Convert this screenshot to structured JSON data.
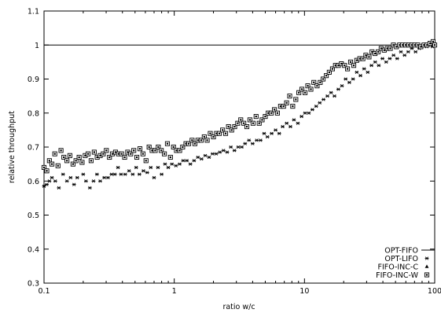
{
  "chart_data": {
    "type": "scatter",
    "title": "",
    "xlabel": "ratio w/c",
    "ylabel": "relative throughput",
    "xscale": "log",
    "xlim": [
      0.1,
      100
    ],
    "ylim": [
      0.3,
      1.1
    ],
    "xticks": [
      {
        "value": 0.1,
        "label": "0.1"
      },
      {
        "value": 1,
        "label": "1"
      },
      {
        "value": 10,
        "label": "10"
      },
      {
        "value": 100,
        "label": "100"
      }
    ],
    "yticks": [
      {
        "value": 0.3,
        "label": "0.3"
      },
      {
        "value": 0.4,
        "label": "0.4"
      },
      {
        "value": 0.5,
        "label": "0.5"
      },
      {
        "value": 0.6,
        "label": "0.6"
      },
      {
        "value": 0.7,
        "label": "0.7"
      },
      {
        "value": 0.8,
        "label": "0.8"
      },
      {
        "value": 0.9,
        "label": "0.9"
      },
      {
        "value": 1,
        "label": "1"
      },
      {
        "value": 1.1,
        "label": "1.1"
      }
    ],
    "grid": false,
    "legend_position": "bottom-right",
    "series": [
      {
        "name": "OPT-FIFO",
        "style": "line",
        "x": [
          0.1,
          100
        ],
        "y": [
          1.0,
          1.0
        ]
      },
      {
        "name": "OPT-LIFO",
        "style": "star",
        "x": [
          0.1,
          0.105,
          0.11,
          0.115,
          0.122,
          0.13,
          0.14,
          0.15,
          0.16,
          0.17,
          0.18,
          0.2,
          0.21,
          0.225,
          0.24,
          0.255,
          0.27,
          0.29,
          0.31,
          0.33,
          0.35,
          0.37,
          0.39,
          0.42,
          0.45,
          0.48,
          0.51,
          0.54,
          0.58,
          0.62,
          0.66,
          0.7,
          0.75,
          0.8,
          0.85,
          0.9,
          0.96,
          1.03,
          1.1,
          1.17,
          1.25,
          1.33,
          1.42,
          1.52,
          1.62,
          1.73,
          1.85,
          1.97,
          2.1,
          2.24,
          2.39,
          2.55,
          2.72,
          2.9,
          3.1,
          3.3,
          3.5,
          3.75,
          4.0,
          4.3,
          4.6,
          4.9,
          5.2,
          5.6,
          6.0,
          6.4,
          6.8,
          7.3,
          7.8,
          8.3,
          8.9,
          9.5,
          10.1,
          10.8,
          11.5,
          12.3,
          13.1,
          14.0,
          15.0,
          16.0,
          17.0,
          18.2,
          19.4,
          20.7,
          22.1,
          23.6,
          25.2,
          26.9,
          28.7,
          30.6,
          32.7,
          34.9,
          37.2,
          39.7,
          42.4,
          45.2,
          48.3,
          51.5,
          55.0,
          58.7,
          62.6,
          66.8,
          71.3,
          76.1,
          81.2,
          86.7,
          92.5,
          96.0,
          100.0
        ],
        "y": [
          0.585,
          0.59,
          0.6,
          0.61,
          0.6,
          0.58,
          0.62,
          0.6,
          0.61,
          0.59,
          0.61,
          0.62,
          0.6,
          0.58,
          0.6,
          0.62,
          0.6,
          0.61,
          0.61,
          0.62,
          0.62,
          0.64,
          0.62,
          0.62,
          0.63,
          0.62,
          0.64,
          0.62,
          0.63,
          0.625,
          0.64,
          0.61,
          0.64,
          0.62,
          0.65,
          0.64,
          0.65,
          0.645,
          0.65,
          0.66,
          0.66,
          0.65,
          0.66,
          0.67,
          0.665,
          0.675,
          0.67,
          0.68,
          0.68,
          0.685,
          0.69,
          0.685,
          0.7,
          0.69,
          0.7,
          0.7,
          0.71,
          0.72,
          0.71,
          0.72,
          0.72,
          0.74,
          0.73,
          0.74,
          0.75,
          0.74,
          0.76,
          0.77,
          0.76,
          0.78,
          0.77,
          0.79,
          0.8,
          0.8,
          0.81,
          0.82,
          0.83,
          0.84,
          0.85,
          0.86,
          0.85,
          0.87,
          0.88,
          0.9,
          0.89,
          0.9,
          0.92,
          0.91,
          0.93,
          0.92,
          0.94,
          0.95,
          0.94,
          0.96,
          0.95,
          0.96,
          0.97,
          0.96,
          0.98,
          0.97,
          0.98,
          0.99,
          0.98,
          0.99,
          1.0,
          0.995,
          1.0,
          0.995,
          1.0
        ]
      },
      {
        "name": "FIFO-INC-C",
        "style": "triangle",
        "x": [],
        "y": []
      },
      {
        "name": "FIFO-INC-W",
        "style": "boxed-square",
        "x": [
          0.1,
          0.105,
          0.11,
          0.115,
          0.121,
          0.128,
          0.135,
          0.142,
          0.15,
          0.158,
          0.167,
          0.176,
          0.186,
          0.196,
          0.207,
          0.218,
          0.23,
          0.243,
          0.256,
          0.27,
          0.285,
          0.301,
          0.318,
          0.335,
          0.354,
          0.373,
          0.394,
          0.416,
          0.439,
          0.463,
          0.489,
          0.516,
          0.545,
          0.575,
          0.607,
          0.641,
          0.676,
          0.714,
          0.754,
          0.795,
          0.84,
          0.886,
          0.935,
          0.987,
          1.04,
          1.1,
          1.16,
          1.23,
          1.29,
          1.37,
          1.44,
          1.52,
          1.61,
          1.7,
          1.79,
          1.89,
          2.0,
          2.11,
          2.22,
          2.35,
          2.48,
          2.61,
          2.76,
          2.91,
          3.07,
          3.24,
          3.42,
          3.61,
          3.81,
          4.03,
          4.25,
          4.49,
          4.73,
          5.0,
          5.27,
          5.57,
          5.88,
          6.2,
          6.55,
          6.91,
          7.29,
          7.7,
          8.12,
          8.58,
          9.05,
          9.55,
          10.1,
          10.6,
          11.2,
          11.8,
          12.5,
          13.2,
          13.9,
          14.7,
          15.5,
          16.4,
          17.3,
          18.2,
          19.2,
          20.3,
          21.4,
          22.6,
          23.9,
          25.2,
          26.6,
          28.1,
          29.6,
          31.3,
          33.0,
          34.8,
          36.8,
          38.8,
          41.0,
          43.2,
          45.6,
          48.2,
          50.8,
          53.7,
          56.6,
          59.8,
          63.1,
          66.6,
          70.3,
          74.2,
          78.3,
          82.7,
          87.3,
          92.1,
          97.2,
          100.0
        ],
        "y": [
          0.64,
          0.63,
          0.66,
          0.65,
          0.68,
          0.645,
          0.69,
          0.67,
          0.66,
          0.675,
          0.65,
          0.66,
          0.67,
          0.655,
          0.675,
          0.68,
          0.66,
          0.685,
          0.67,
          0.675,
          0.68,
          0.69,
          0.67,
          0.68,
          0.685,
          0.68,
          0.68,
          0.67,
          0.685,
          0.68,
          0.69,
          0.67,
          0.695,
          0.68,
          0.66,
          0.7,
          0.69,
          0.69,
          0.7,
          0.69,
          0.68,
          0.71,
          0.67,
          0.7,
          0.69,
          0.69,
          0.7,
          0.71,
          0.71,
          0.72,
          0.71,
          0.72,
          0.72,
          0.73,
          0.72,
          0.74,
          0.73,
          0.74,
          0.74,
          0.75,
          0.74,
          0.76,
          0.75,
          0.76,
          0.77,
          0.78,
          0.77,
          0.76,
          0.78,
          0.77,
          0.79,
          0.77,
          0.78,
          0.79,
          0.8,
          0.8,
          0.81,
          0.8,
          0.82,
          0.82,
          0.83,
          0.85,
          0.82,
          0.84,
          0.86,
          0.87,
          0.86,
          0.88,
          0.87,
          0.89,
          0.88,
          0.89,
          0.9,
          0.91,
          0.92,
          0.93,
          0.94,
          0.94,
          0.945,
          0.94,
          0.93,
          0.95,
          0.94,
          0.955,
          0.96,
          0.96,
          0.97,
          0.965,
          0.98,
          0.975,
          0.98,
          0.99,
          0.985,
          0.99,
          0.99,
          1.0,
          0.995,
          1.0,
          1.0,
          1.0,
          1.0,
          1.0,
          1.0,
          1.0,
          0.995,
          1.0,
          1.0,
          1.005,
          1.01,
          1.0
        ]
      }
    ]
  }
}
